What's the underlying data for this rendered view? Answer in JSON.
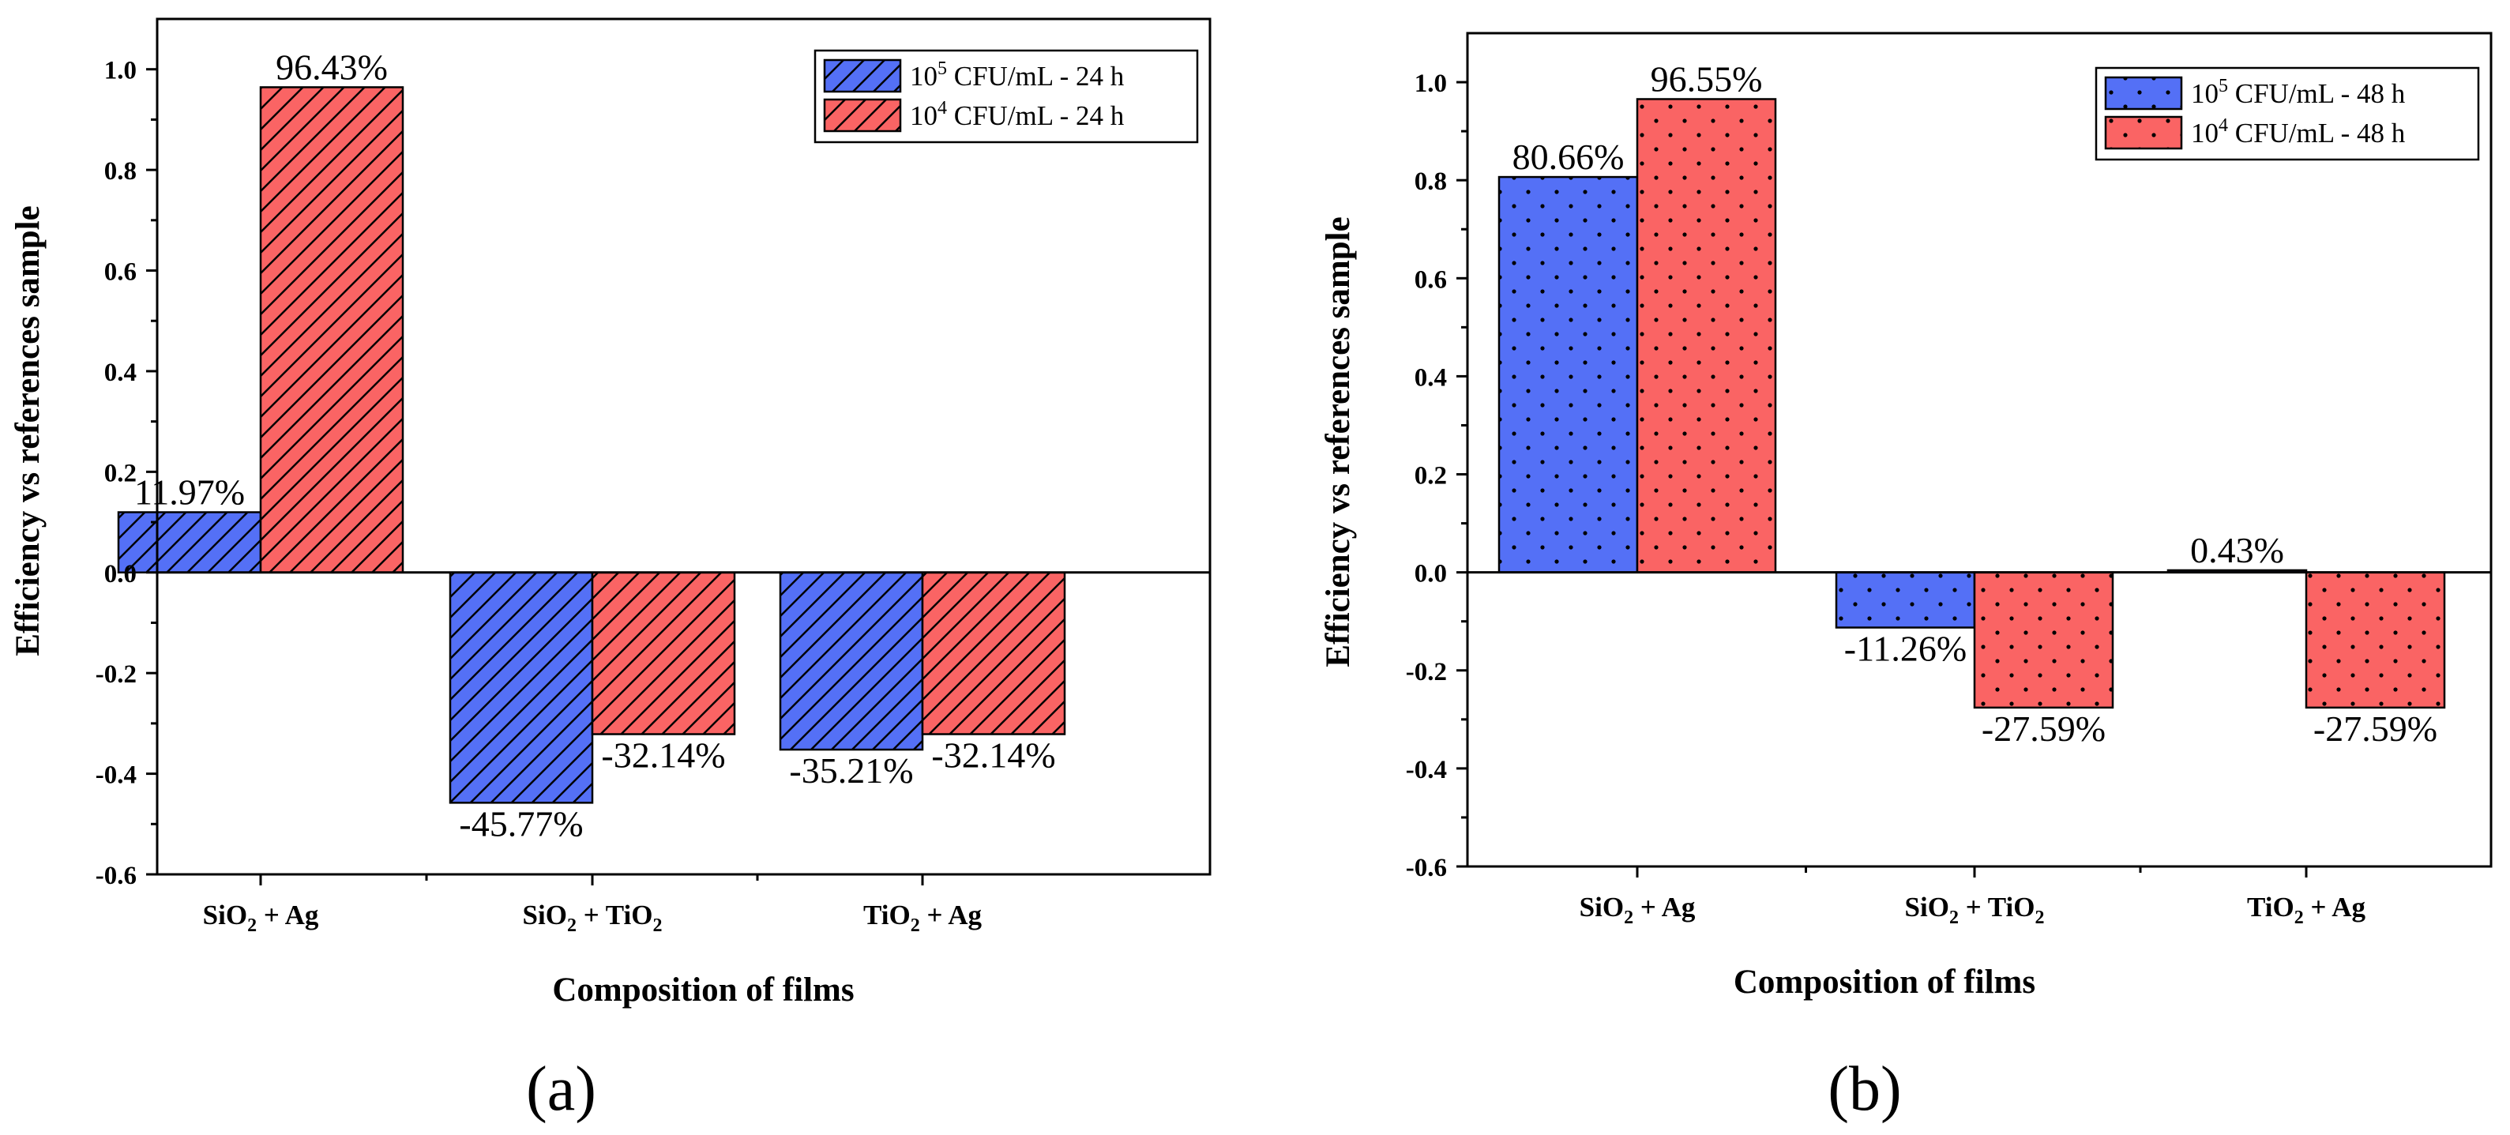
{
  "colors": {
    "series_blue": "#5470f6",
    "series_red": "#fa6464",
    "axis": "#000000",
    "background": "#ffffff"
  },
  "chart_data": [
    {
      "panel_label": "(a)",
      "type": "bar",
      "pattern": "hatch",
      "categories": [
        {
          "main": "SiO",
          "sub": "2",
          "rest": " + Ag"
        },
        {
          "main": "SiO",
          "sub": "2",
          "rest": " + TiO",
          "sub2": "2"
        },
        {
          "main": "TiO",
          "sub": "2",
          "rest": " + Ag"
        }
      ],
      "series": [
        {
          "name": "10^5 CFU/mL - 24 h",
          "legend": {
            "base": "10",
            "sup": "5",
            "rest": " CFU/mL - 24 h"
          },
          "color": "#5470f6",
          "values": [
            0.1197,
            -0.4577,
            -0.3521
          ],
          "labels": [
            "11.97%",
            "-45.77%",
            "-35.21%"
          ]
        },
        {
          "name": "10^4 CFU/mL - 24 h",
          "legend": {
            "base": "10",
            "sup": "4",
            "rest": " CFU/mL - 24 h"
          },
          "color": "#fa6464",
          "values": [
            0.9643,
            -0.3214,
            -0.3214
          ],
          "labels": [
            "96.43%",
            "-32.14%",
            "-32.14%"
          ]
        }
      ],
      "xlabel": "Composition of films",
      "ylabel": "Efficiency vs references sample",
      "ylim": [
        -0.6,
        1.1
      ],
      "yticks": [
        -0.6,
        -0.4,
        -0.2,
        0.0,
        0.2,
        0.4,
        0.6,
        0.8,
        1.0
      ],
      "ytick_labels": [
        "-0.6",
        "-0.4",
        "-0.2",
        "0.0",
        "0.2",
        "0.4",
        "0.6",
        "0.8",
        "1.0"
      ],
      "legend_position": "top-right",
      "grid": false
    },
    {
      "panel_label": "(b)",
      "type": "bar",
      "pattern": "dots",
      "categories": [
        {
          "main": "SiO",
          "sub": "2",
          "rest": " + Ag"
        },
        {
          "main": "SiO",
          "sub": "2",
          "rest": " + TiO",
          "sub2": "2"
        },
        {
          "main": "TiO",
          "sub": "2",
          "rest": " + Ag"
        }
      ],
      "series": [
        {
          "name": "10^5 CFU/mL - 48 h",
          "legend": {
            "base": "10",
            "sup": "5",
            "rest": " CFU/mL - 48 h"
          },
          "color": "#5470f6",
          "values": [
            0.8066,
            -0.1126,
            0.0043
          ],
          "labels": [
            "80.66%",
            "-11.26%",
            "0.43%"
          ]
        },
        {
          "name": "10^4 CFU/mL - 48 h",
          "legend": {
            "base": "10",
            "sup": "4",
            "rest": " CFU/mL - 48 h"
          },
          "color": "#fa6464",
          "values": [
            0.9655,
            -0.2759,
            -0.2759
          ],
          "labels": [
            "96.55%",
            "-27.59%",
            "-27.59%"
          ]
        }
      ],
      "xlabel": "Composition of films",
      "ylabel": "Efficiency vs references sample",
      "ylim": [
        -0.6,
        1.1
      ],
      "yticks": [
        -0.6,
        -0.4,
        -0.2,
        0.0,
        0.2,
        0.4,
        0.6,
        0.8,
        1.0
      ],
      "ytick_labels": [
        "-0.6",
        "-0.4",
        "-0.2",
        "0.0",
        "0.2",
        "0.4",
        "0.6",
        "0.8",
        "1.0"
      ],
      "legend_position": "top-right",
      "grid": false
    }
  ]
}
